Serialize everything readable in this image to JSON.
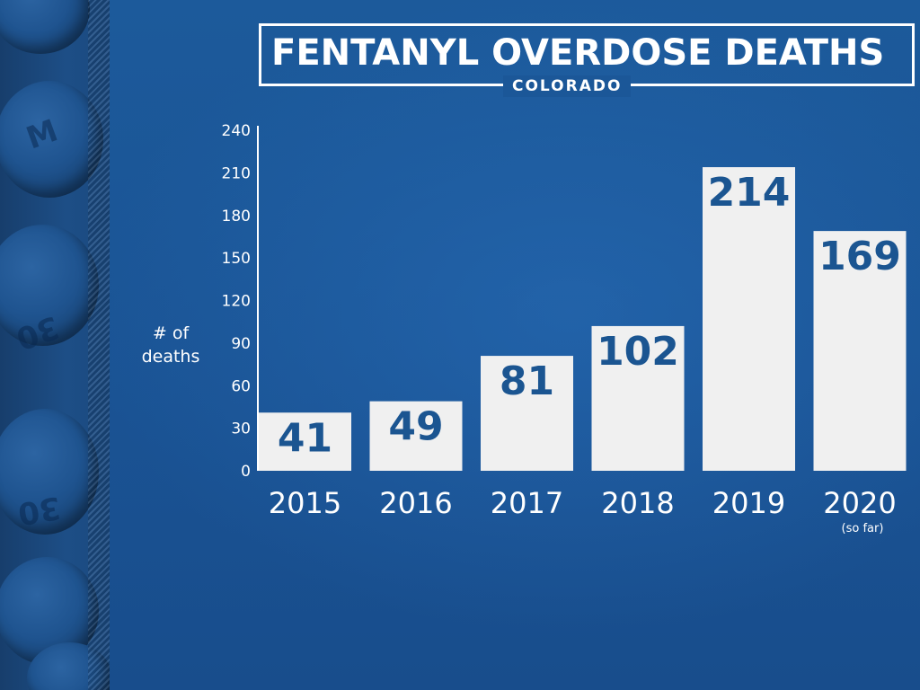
{
  "colors": {
    "background": "#1a5596",
    "bar": "#f0f0f0",
    "value_label": "#1b5591",
    "text": "#ffffff"
  },
  "title": "FENTANYL OVERDOSE DEATHS",
  "subtitle": "COLORADO",
  "side_image": {
    "pill_imprints": [
      "M",
      "30",
      "30"
    ]
  },
  "chart_data": {
    "type": "bar",
    "title": "FENTANYL OVERDOSE DEATHS",
    "subtitle": "COLORADO",
    "ylabel_lines": [
      "# of",
      "deaths"
    ],
    "xlabel": "",
    "categories": [
      "2015",
      "2016",
      "2017",
      "2018",
      "2019",
      "2020"
    ],
    "category_sublabels": [
      "",
      "",
      "",
      "",
      "",
      "(so far)"
    ],
    "values": [
      41,
      49,
      81,
      102,
      214,
      169
    ],
    "ylim": [
      0,
      240
    ],
    "yticks": [
      0,
      30,
      60,
      90,
      120,
      150,
      180,
      210,
      240
    ],
    "data_labels": true,
    "grid": false,
    "legend": "none"
  }
}
